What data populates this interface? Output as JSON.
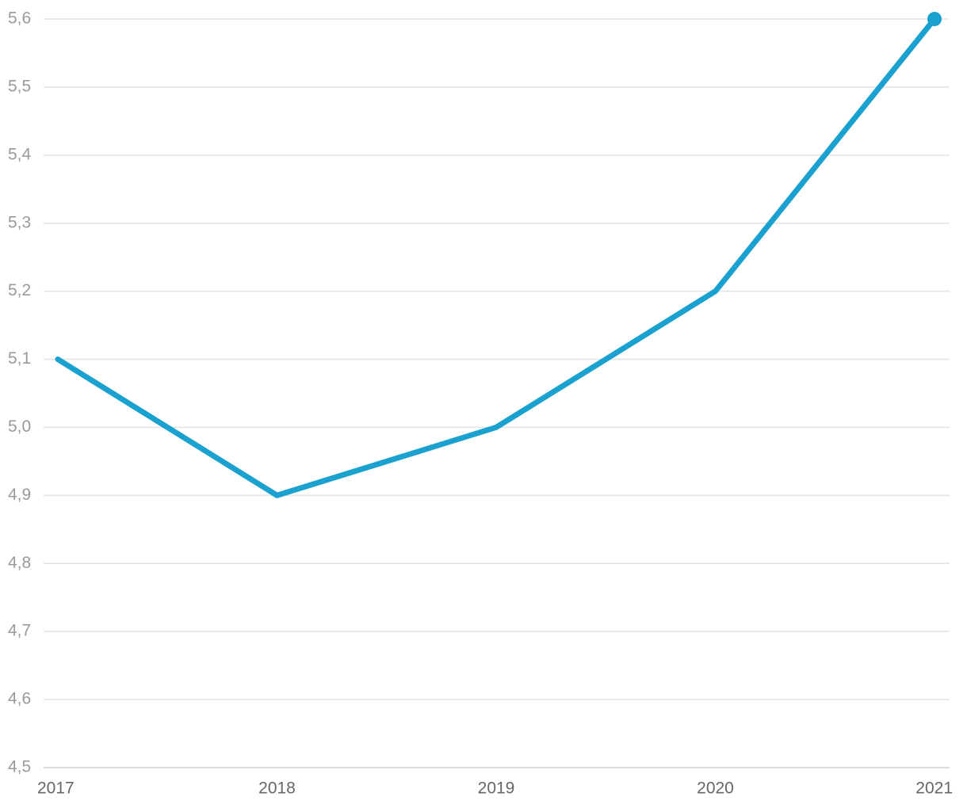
{
  "chart_data": {
    "type": "line",
    "x": [
      2017,
      2018,
      2019,
      2020,
      2021
    ],
    "xlim": [
      2017,
      2021
    ],
    "xticks": [
      2017,
      2018,
      2019,
      2020,
      2021
    ],
    "series": [
      {
        "color": "#1ba1cf",
        "values": [
          5.1,
          4.9,
          5.0,
          5.2,
          5.6
        ]
      }
    ],
    "ylim": [
      4.5,
      5.6
    ],
    "yticks": [
      {
        "value": 4.5,
        "label": "4,5"
      },
      {
        "value": 4.6,
        "label": "4,6"
      },
      {
        "value": 4.7,
        "label": "4,7"
      },
      {
        "value": 4.8,
        "label": "4,8"
      },
      {
        "value": 4.9,
        "label": "4,9"
      },
      {
        "value": 5.0,
        "label": "5,0"
      },
      {
        "value": 5.1,
        "label": "5,1"
      },
      {
        "value": 5.2,
        "label": "5,2"
      },
      {
        "value": 5.3,
        "label": "5,3"
      },
      {
        "value": 5.4,
        "label": "5,4"
      },
      {
        "value": 5.5,
        "label": "5,5"
      },
      {
        "value": 5.6,
        "label": "5,6"
      }
    ],
    "grid": true
  }
}
